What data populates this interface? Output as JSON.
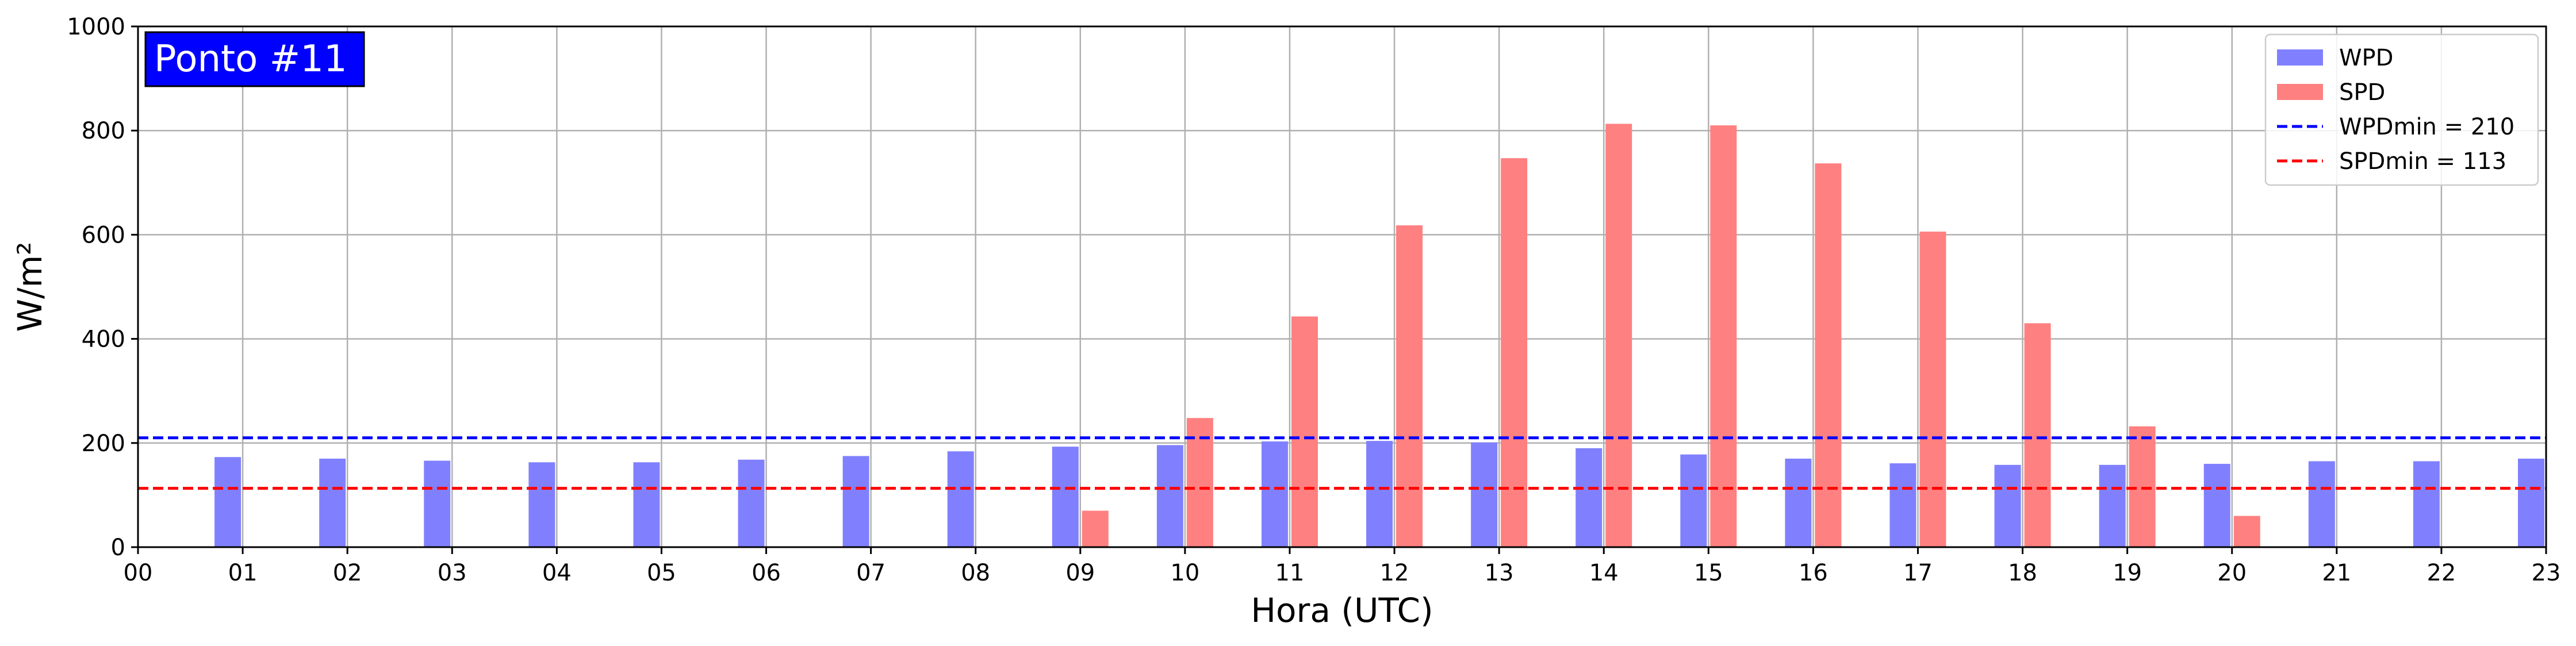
{
  "chart_data": {
    "type": "bar",
    "annotation": "Ponto #11",
    "xlabel": "Hora (UTC)",
    "ylabel": "W/m²",
    "ylim": [
      0,
      1000
    ],
    "yticks": [
      0,
      200,
      400,
      600,
      800,
      1000
    ],
    "x_ticks": [
      "00",
      "01",
      "02",
      "03",
      "04",
      "05",
      "06",
      "07",
      "08",
      "09",
      "10",
      "11",
      "12",
      "13",
      "14",
      "15",
      "16",
      "17",
      "18",
      "19",
      "20",
      "21",
      "22",
      "23"
    ],
    "grid": true,
    "legend_position": "top-right",
    "series": [
      {
        "name": "WPD",
        "color": "#8080ff",
        "values": [
          null,
          173,
          170,
          166,
          163,
          163,
          168,
          175,
          184,
          193,
          196,
          203,
          204,
          201,
          190,
          178,
          170,
          161,
          158,
          158,
          160,
          165,
          165,
          170
        ]
      },
      {
        "name": "SPD",
        "color": "#ff8080",
        "values": [
          null,
          null,
          null,
          null,
          null,
          null,
          null,
          null,
          null,
          70,
          248,
          443,
          618,
          747,
          813,
          810,
          737,
          606,
          430,
          232,
          60,
          null,
          null,
          null
        ]
      }
    ],
    "reference_lines": [
      {
        "label": "WPDmin = 210",
        "value": 210,
        "color": "#0000ff",
        "style": "dashed"
      },
      {
        "label": "SPDmin = 113",
        "value": 113,
        "color": "#ff0000",
        "style": "dashed"
      }
    ]
  }
}
